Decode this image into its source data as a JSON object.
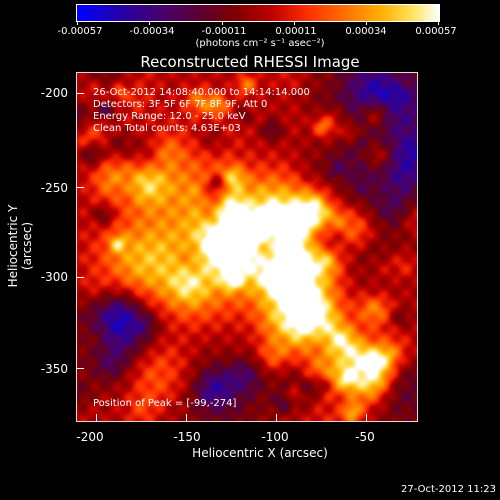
{
  "colorbar": {
    "labels": [
      "-0.00057",
      "-0.00034",
      "-0.00011",
      "0.00011",
      "0.00034",
      "0.00057"
    ],
    "units": "(photons cm⁻² s⁻¹ asec⁻²)"
  },
  "title": "Reconstructed RHESSI Image",
  "annotations": {
    "time": "26-Oct-2012 14:08:40.000 to 14:14:14.000",
    "detectors": "Detectors: 3F 5F 6F 7F 8F 9F, Att 0",
    "energy": "Energy Range: 12.0 - 25.0 keV",
    "clean": "Clean    Total counts: 4.63E+03",
    "peak": "Position of Peak = [-99,-274]"
  },
  "axes": {
    "xlabel": "Heliocentric X (arcsec)",
    "ylabel": "Heliocentric Y (arcsec)",
    "xticks": [
      "-200",
      "-150",
      "-100",
      "-50"
    ],
    "yticks": [
      "-200",
      "-250",
      "-300",
      "-350"
    ],
    "xlim": [
      -212,
      -15
    ],
    "ylim": [
      -385,
      -185
    ]
  },
  "timestamp": "27-Oct-2012 11:23"
}
